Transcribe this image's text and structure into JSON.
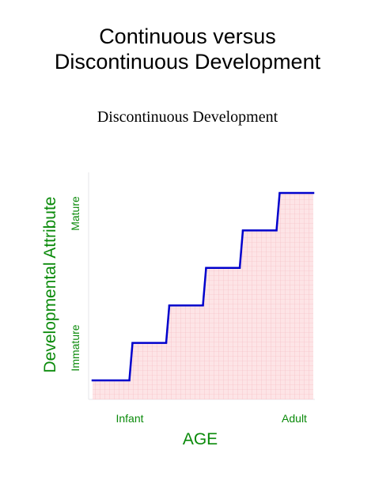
{
  "title_line1": "Continuous versus",
  "title_line2": "Discontinuous Development",
  "subtitle": "Discontinuous Development",
  "chart_data": {
    "type": "line",
    "title": "Discontinuous Development",
    "xlabel": "AGE",
    "ylabel": "Developmental Attribute",
    "x_tick_labels": [
      "Infant",
      "Adult"
    ],
    "y_tick_labels": [
      "Immature",
      "Mature"
    ],
    "step_levels": [
      1,
      2,
      3,
      4,
      5,
      6
    ],
    "grid": true,
    "colors": {
      "line": "#0000cc",
      "fill": "#fde4e6",
      "grid": "#f5b8bf",
      "label": "#0a8a0a"
    }
  }
}
